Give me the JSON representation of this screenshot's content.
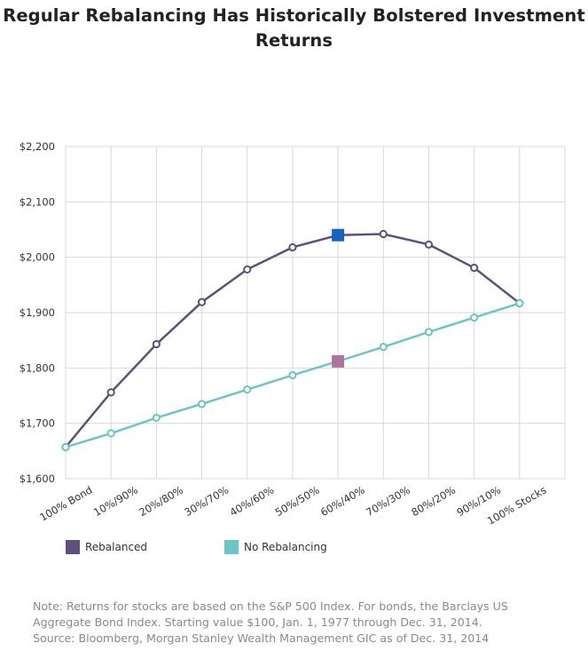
{
  "title_lines": [
    "Regular Rebalancing Has Historically Bolstered Investment",
    "Returns"
  ],
  "chart_data": {
    "type": "line",
    "categories": [
      "100% Bond",
      "10%/90%",
      "20%/80%",
      "30%/70%",
      "40%/60%",
      "50%/50%",
      "60%/40%",
      "70%/30%",
      "80%/20%",
      "90%/10%",
      "100% Stocks"
    ],
    "y_ticks": [
      "$1,600",
      "$1,700",
      "$1,800",
      "$1,900",
      "$2,000",
      "$2,100",
      "$2,200"
    ],
    "y_tick_values": [
      1600,
      1700,
      1800,
      1900,
      2000,
      2100,
      2200
    ],
    "ylim": [
      1600,
      2200
    ],
    "grid": true,
    "series": [
      {
        "name": "Rebalanced",
        "color": "#5e507f",
        "values": [
          1657,
          1756,
          1843,
          1919,
          1978,
          2018,
          2040,
          2042,
          2023,
          1981,
          1917
        ],
        "highlight_index": 6,
        "highlight_color": "#1565c0"
      },
      {
        "name": "No Rebalancing",
        "color": "#6cc5c8",
        "values": [
          1657,
          1682,
          1710,
          1735,
          1761,
          1787,
          1812,
          1838,
          1865,
          1891,
          1917
        ],
        "highlight_index": 6,
        "highlight_color": "#b0749c"
      }
    ],
    "legend_placement": "bottom-left"
  },
  "legend": {
    "rebalanced_label": "Rebalanced",
    "no_rebalancing_label": "No Rebalancing"
  },
  "note_lines": [
    "Note: Returns for stocks are based on the S&P 500 Index. For bonds, the Barclays US",
    "Aggregate Bond Index. Starting value $100, Jan. 1, 1977 through Dec. 31, 2014.",
    "Source: Bloomberg, Morgan Stanley Wealth Management GIC as of Dec. 31, 2014"
  ]
}
